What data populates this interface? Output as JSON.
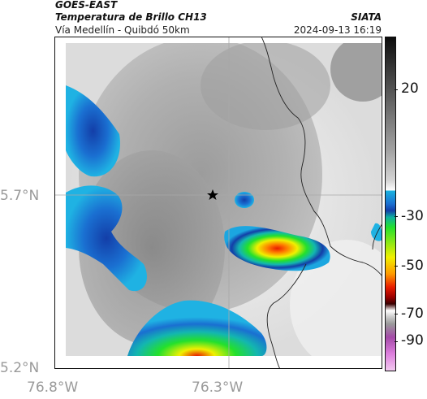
{
  "header": {
    "satellite": "GOES-EAST",
    "product": "Temperatura de Brillo CH13",
    "organization": "SIATA",
    "region": "Vía Medellín - Quibdó 50km",
    "timestamp": "2024-09-13 16:19"
  },
  "axes": {
    "latitude_labels": [
      "5.7°N",
      "5.2°N"
    ],
    "longitude_labels": [
      "76.8°W",
      "76.3°W"
    ]
  },
  "colorbar": {
    "labels": [
      "20",
      "-30",
      "-50",
      "-70",
      "-90"
    ],
    "colors": [
      "#0c0c0c",
      "#ffffff",
      "#19b3e0",
      "#133ea8",
      "#23e02c",
      "#f0f000",
      "#ff9a00",
      "#e81c00",
      "#3a0000",
      "#a44aa8",
      "#f1c9ef"
    ]
  },
  "map": {
    "marker_icon": "star-icon"
  }
}
